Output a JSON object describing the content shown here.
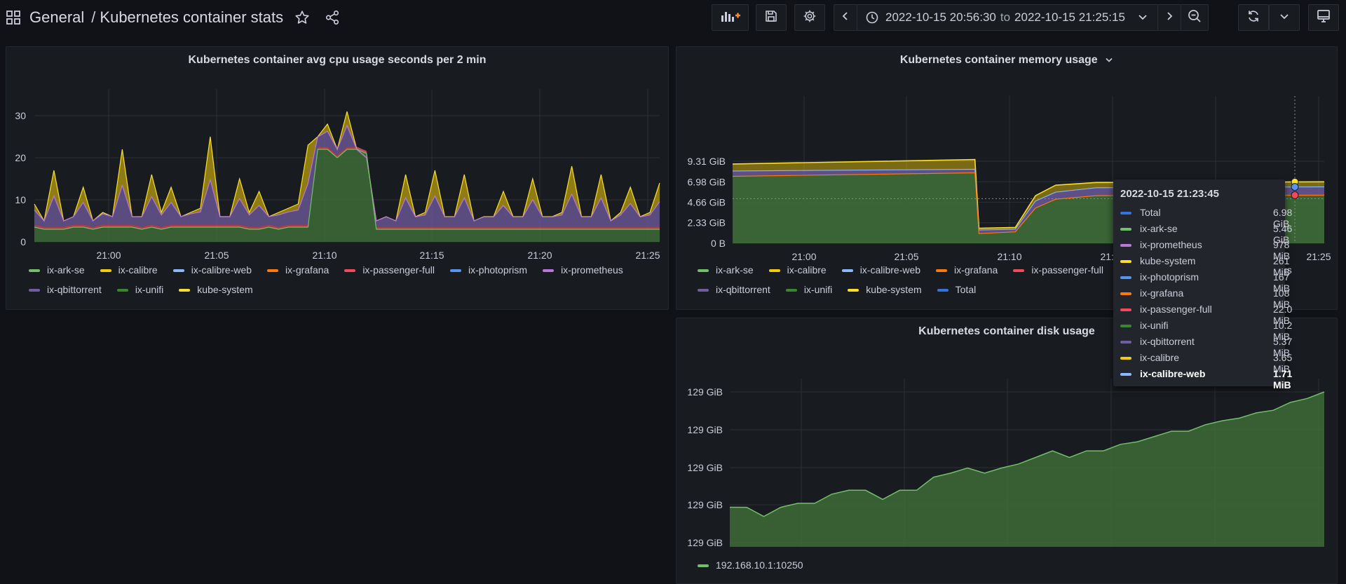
{
  "header": {
    "folder": "General",
    "title": "Kubernetes container stats",
    "time_from": "2022-10-15 20:56:30",
    "time_to_word": "to",
    "time_to": "2022-10-15 21:25:15"
  },
  "colors": {
    "ix-ark-se": "#73bf69",
    "ix-calibre": "#f2cc0c",
    "ix-calibre-web": "#8ab8ff",
    "ix-grafana": "#ff780a",
    "ix-passenger-full": "#f2495c",
    "ix-photoprism": "#5794f2",
    "ix-prometheus": "#b877d9",
    "ix-qbittorrent": "#705da0",
    "ix-unifi": "#37872d",
    "kube-system": "#fade2a",
    "Total": "#3274d9",
    "disk": "#73bf69"
  },
  "panels": {
    "cpu": {
      "title": "Kubernetes container avg cpu usage seconds per 2 min",
      "legend": [
        [
          "ix-ark-se",
          "ix-calibre",
          "ix-calibre-web",
          "ix-grafana",
          "ix-passenger-full",
          "ix-photoprism",
          "ix-prometheus"
        ],
        [
          "ix-qbittorrent",
          "ix-unifi",
          "kube-system"
        ]
      ]
    },
    "memory": {
      "title": "Kubernetes container memory usage",
      "legend": [
        [
          "ix-ark-se",
          "ix-calibre",
          "ix-calibre-web",
          "ix-grafana",
          "ix-passenger-full",
          "ix-photoprism",
          "ix-prometheus"
        ],
        [
          "ix-qbittorrent",
          "ix-unifi",
          "kube-system",
          "Total"
        ]
      ]
    },
    "disk": {
      "title": "Kubernetes container disk usage",
      "legend": [
        "192.168.10.1:10250"
      ]
    }
  },
  "tooltip": {
    "time": "2022-10-15 21:23:45",
    "rows": [
      {
        "name": "Total",
        "value": "6.98 GiB"
      },
      {
        "name": "ix-ark-se",
        "value": "5.46 GiB"
      },
      {
        "name": "ix-prometheus",
        "value": "978 MiB"
      },
      {
        "name": "kube-system",
        "value": "261 MiB"
      },
      {
        "name": "ix-photoprism",
        "value": "167 MiB"
      },
      {
        "name": "ix-grafana",
        "value": "108 MiB"
      },
      {
        "name": "ix-passenger-full",
        "value": "22.0 MiB"
      },
      {
        "name": "ix-unifi",
        "value": "10.2 MiB"
      },
      {
        "name": "ix-qbittorrent",
        "value": "5.37 MiB"
      },
      {
        "name": "ix-calibre",
        "value": "3.65 MiB"
      },
      {
        "name": "ix-calibre-web",
        "value": "1.71 MiB"
      }
    ]
  },
  "chart_data": [
    {
      "type": "area",
      "title": "Kubernetes container avg cpu usage seconds per 2 min",
      "x_ticks": [
        "21:00",
        "21:05",
        "21:10",
        "21:15",
        "21:20",
        "21:25"
      ],
      "y_ticks": [
        "0",
        "10",
        "20",
        "30"
      ],
      "ylim": [
        0,
        33
      ],
      "stacked": true,
      "series_total_top": [
        9,
        5,
        17,
        5,
        6,
        13,
        5,
        7,
        6,
        22,
        6,
        6,
        16,
        7,
        13,
        6,
        7,
        8,
        25,
        6,
        6,
        15,
        7,
        12,
        6,
        7,
        8,
        9,
        23,
        25,
        28,
        22,
        31,
        22,
        20,
        5,
        6,
        5,
        16,
        6,
        7,
        17,
        6,
        6,
        16,
        5,
        6,
        6,
        12,
        6,
        6,
        15,
        6,
        6,
        7,
        18,
        6,
        6,
        16,
        5,
        7,
        13,
        6,
        7,
        14
      ],
      "series_base_green": [
        3.5,
        3,
        3,
        3,
        3.5,
        3.5,
        3,
        3.5,
        3.5,
        3.5,
        3.5,
        3,
        3.5,
        3,
        3.5,
        3.5,
        3.5,
        3.5,
        3.5,
        3.5,
        3.5,
        3.5,
        3,
        3,
        3.5,
        3,
        3.5,
        3.5,
        3.5,
        22,
        22,
        20,
        22,
        22,
        21,
        3,
        3,
        3,
        3,
        3,
        3,
        3,
        3,
        3,
        3,
        3,
        3,
        3,
        3,
        3,
        3,
        3,
        3,
        3,
        3,
        3,
        3,
        3,
        3,
        3,
        3,
        3,
        3,
        3,
        3
      ],
      "series": [
        {
          "name": "ix-ark-se"
        },
        {
          "name": "ix-calibre"
        },
        {
          "name": "ix-calibre-web"
        },
        {
          "name": "ix-grafana"
        },
        {
          "name": "ix-passenger-full"
        },
        {
          "name": "ix-photoprism"
        },
        {
          "name": "ix-prometheus"
        },
        {
          "name": "ix-qbittorrent"
        },
        {
          "name": "ix-unifi"
        },
        {
          "name": "kube-system"
        }
      ]
    },
    {
      "type": "area",
      "title": "Kubernetes container memory usage",
      "x_ticks": [
        "21:00",
        "21:05",
        "21:10",
        "21:15",
        "21:20",
        "21:25"
      ],
      "y_ticks": [
        "0 B",
        "2.33 GiB",
        "4.66 GiB",
        "6.98 GiB",
        "9.31 GiB"
      ],
      "ylim": [
        0,
        11.2
      ],
      "x_range_minutes": [
        20.94,
        21.42
      ],
      "series": [
        {
          "name": "ix-ark-se",
          "points": [
            [
              "20:56",
              7.6
            ],
            [
              "21:08",
              8.0
            ],
            [
              "21:08.2",
              1.1
            ],
            [
              "21:10",
              1.3
            ],
            [
              "21:11",
              4.0
            ],
            [
              "21:12",
              5.0
            ],
            [
              "21:14",
              5.4
            ],
            [
              "21:25.3",
              5.46
            ]
          ]
        },
        {
          "name": "ix-prometheus",
          "points": [
            [
              "20:56",
              8.2
            ],
            [
              "21:08",
              8.4
            ],
            [
              "21:08.2",
              1.5
            ],
            [
              "21:10",
              1.6
            ],
            [
              "21:11",
              4.8
            ],
            [
              "21:12",
              5.8
            ],
            [
              "21:14",
              6.3
            ],
            [
              "21:25.3",
              6.4
            ]
          ]
        },
        {
          "name": "Total",
          "points": [
            [
              "20:56",
              9.0
            ],
            [
              "21:08",
              9.5
            ],
            [
              "21:08.2",
              1.7
            ],
            [
              "21:10",
              1.8
            ],
            [
              "21:11",
              5.4
            ],
            [
              "21:12",
              6.6
            ],
            [
              "21:14",
              6.9
            ],
            [
              "21:25.3",
              6.98
            ]
          ]
        }
      ]
    },
    {
      "type": "area",
      "title": "Kubernetes container disk usage",
      "x_ticks": [
        "21:00",
        "21:05",
        "21:10",
        "21:15",
        "21:20",
        "21:25"
      ],
      "y_ticks": [
        "129 GiB",
        "129 GiB",
        "129 GiB",
        "129 GiB",
        "129 GiB"
      ],
      "series": [
        {
          "name": "192.168.10.1:10250",
          "values": [
            0.12,
            0.12,
            0.05,
            0.12,
            0.15,
            0.15,
            0.22,
            0.25,
            0.25,
            0.18,
            0.25,
            0.25,
            0.35,
            0.38,
            0.42,
            0.38,
            0.42,
            0.45,
            0.5,
            0.55,
            0.5,
            0.55,
            0.55,
            0.6,
            0.62,
            0.66,
            0.7,
            0.7,
            0.75,
            0.78,
            0.8,
            0.84,
            0.86,
            0.92,
            0.95,
            1.0
          ]
        }
      ]
    }
  ]
}
